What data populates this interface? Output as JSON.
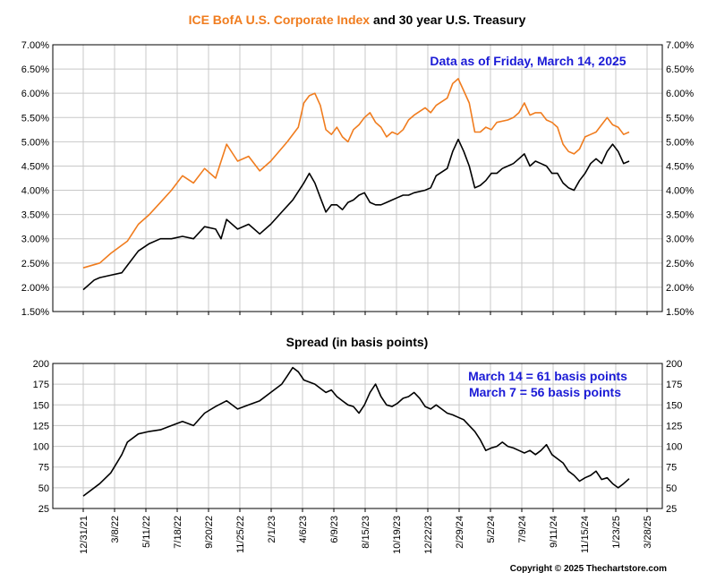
{
  "chart_data": {
    "type": "line",
    "x_axis": {
      "tick_labels": [
        "12/31/21",
        "3/8/22",
        "5/11/22",
        "7/18/22",
        "9/20/22",
        "11/25/22",
        "2/1/23",
        "4/6/23",
        "6/9/23",
        "8/15/23",
        "10/19/23",
        "12/22/23",
        "2/29/24",
        "5/2/24",
        "7/9/24",
        "9/11/24",
        "11/15/24",
        "1/23/25",
        "3/28/25"
      ]
    },
    "top_panel": {
      "title_part1": "ICE BofA U.S. Corporate Index",
      "title_part2": " and 30 year U.S. Treasury",
      "annotation": "Data as of Friday, March 14, 2025",
      "y_ticks": [
        "7.00%",
        "6.50%",
        "6.00%",
        "5.50%",
        "5.00%",
        "4.50%",
        "4.00%",
        "3.50%",
        "3.00%",
        "2.50%",
        "2.00%",
        "1.50%"
      ],
      "ylim": [
        1.5,
        7.0
      ],
      "series": [
        {
          "color": "#f07c1e",
          "points": [
            [
              0,
              2.4
            ],
            [
              3,
              2.5
            ],
            [
              5,
              2.7
            ],
            [
              8,
              2.95
            ],
            [
              10,
              3.3
            ],
            [
              12,
              3.5
            ],
            [
              14,
              3.75
            ],
            [
              16,
              4.0
            ],
            [
              18,
              4.3
            ],
            [
              20,
              4.15
            ],
            [
              22,
              4.45
            ],
            [
              24,
              4.25
            ],
            [
              26,
              4.95
            ],
            [
              28,
              4.6
            ],
            [
              30,
              4.7
            ],
            [
              32,
              4.4
            ],
            [
              34,
              4.6
            ],
            [
              37,
              5.0
            ],
            [
              39,
              5.3
            ],
            [
              40,
              5.8
            ],
            [
              41,
              5.95
            ],
            [
              42,
              6.0
            ],
            [
              43,
              5.75
            ],
            [
              44,
              5.25
            ],
            [
              45,
              5.15
            ],
            [
              46,
              5.3
            ],
            [
              47,
              5.1
            ],
            [
              48,
              5.0
            ],
            [
              49,
              5.25
            ],
            [
              50,
              5.35
            ],
            [
              51,
              5.5
            ],
            [
              52,
              5.6
            ],
            [
              53,
              5.4
            ],
            [
              54,
              5.3
            ],
            [
              55,
              5.1
            ],
            [
              56,
              5.2
            ],
            [
              57,
              5.15
            ],
            [
              58,
              5.25
            ],
            [
              59,
              5.45
            ],
            [
              60,
              5.55
            ],
            [
              62,
              5.7
            ],
            [
              63,
              5.6
            ],
            [
              64,
              5.75
            ],
            [
              66,
              5.9
            ],
            [
              67,
              6.2
            ],
            [
              68,
              6.3
            ],
            [
              69,
              6.05
            ],
            [
              70,
              5.8
            ],
            [
              71,
              5.2
            ],
            [
              72,
              5.2
            ],
            [
              73,
              5.3
            ],
            [
              74,
              5.25
            ],
            [
              75,
              5.4
            ],
            [
              77,
              5.45
            ],
            [
              78,
              5.5
            ],
            [
              79,
              5.6
            ],
            [
              80,
              5.8
            ],
            [
              81,
              5.55
            ],
            [
              82,
              5.6
            ],
            [
              83,
              5.6
            ],
            [
              84,
              5.45
            ],
            [
              85,
              5.4
            ],
            [
              86,
              5.3
            ],
            [
              87,
              4.95
            ],
            [
              88,
              4.8
            ],
            [
              89,
              4.75
            ],
            [
              90,
              4.85
            ],
            [
              91,
              5.1
            ],
            [
              92,
              5.15
            ],
            [
              93,
              5.2
            ],
            [
              94,
              5.35
            ],
            [
              95,
              5.5
            ],
            [
              96,
              5.35
            ],
            [
              97,
              5.3
            ],
            [
              98,
              5.15
            ],
            [
              99,
              5.2
            ]
          ]
        },
        {
          "color": "#000000",
          "points": [
            [
              0,
              1.95
            ],
            [
              2,
              2.15
            ],
            [
              3,
              2.2
            ],
            [
              5,
              2.25
            ],
            [
              7,
              2.3
            ],
            [
              8,
              2.45
            ],
            [
              10,
              2.75
            ],
            [
              12,
              2.9
            ],
            [
              14,
              3.0
            ],
            [
              16,
              3.0
            ],
            [
              18,
              3.05
            ],
            [
              20,
              3.0
            ],
            [
              22,
              3.25
            ],
            [
              24,
              3.2
            ],
            [
              25,
              3.0
            ],
            [
              26,
              3.4
            ],
            [
              28,
              3.2
            ],
            [
              30,
              3.3
            ],
            [
              32,
              3.1
            ],
            [
              34,
              3.3
            ],
            [
              36,
              3.55
            ],
            [
              38,
              3.8
            ],
            [
              40,
              4.15
            ],
            [
              41,
              4.35
            ],
            [
              42,
              4.15
            ],
            [
              43,
              3.85
            ],
            [
              44,
              3.55
            ],
            [
              45,
              3.7
            ],
            [
              46,
              3.7
            ],
            [
              47,
              3.6
            ],
            [
              48,
              3.75
            ],
            [
              49,
              3.8
            ],
            [
              50,
              3.9
            ],
            [
              51,
              3.95
            ],
            [
              52,
              3.75
            ],
            [
              53,
              3.7
            ],
            [
              54,
              3.7
            ],
            [
              55,
              3.75
            ],
            [
              56,
              3.8
            ],
            [
              57,
              3.85
            ],
            [
              58,
              3.9
            ],
            [
              59,
              3.9
            ],
            [
              60,
              3.95
            ],
            [
              62,
              4.0
            ],
            [
              63,
              4.05
            ],
            [
              64,
              4.3
            ],
            [
              66,
              4.45
            ],
            [
              67,
              4.8
            ],
            [
              68,
              5.05
            ],
            [
              69,
              4.8
            ],
            [
              70,
              4.5
            ],
            [
              71,
              4.05
            ],
            [
              72,
              4.1
            ],
            [
              73,
              4.2
            ],
            [
              74,
              4.35
            ],
            [
              75,
              4.35
            ],
            [
              76,
              4.45
            ],
            [
              77,
              4.5
            ],
            [
              78,
              4.55
            ],
            [
              79,
              4.65
            ],
            [
              80,
              4.75
            ],
            [
              81,
              4.5
            ],
            [
              82,
              4.6
            ],
            [
              83,
              4.55
            ],
            [
              84,
              4.5
            ],
            [
              85,
              4.35
            ],
            [
              86,
              4.35
            ],
            [
              87,
              4.15
            ],
            [
              88,
              4.05
            ],
            [
              89,
              4.0
            ],
            [
              90,
              4.2
            ],
            [
              91,
              4.35
            ],
            [
              92,
              4.55
            ],
            [
              93,
              4.65
            ],
            [
              94,
              4.55
            ],
            [
              95,
              4.8
            ],
            [
              96,
              4.95
            ],
            [
              97,
              4.8
            ],
            [
              98,
              4.55
            ],
            [
              99,
              4.6
            ]
          ]
        }
      ]
    },
    "bottom_panel": {
      "title": "Spread (in basis points)",
      "annotation_1": "March 14 = 61 basis points",
      "annotation_2": "March 7 = 56 basis points",
      "y_ticks": [
        "200",
        "175",
        "150",
        "125",
        "100",
        "75",
        "50",
        "25"
      ],
      "ylim": [
        25,
        200
      ],
      "series": [
        {
          "color": "#000000",
          "points": [
            [
              0,
              40
            ],
            [
              3,
              55
            ],
            [
              5,
              68
            ],
            [
              7,
              90
            ],
            [
              8,
              105
            ],
            [
              10,
              115
            ],
            [
              12,
              118
            ],
            [
              14,
              120
            ],
            [
              16,
              125
            ],
            [
              18,
              130
            ],
            [
              20,
              125
            ],
            [
              22,
              140
            ],
            [
              24,
              148
            ],
            [
              26,
              155
            ],
            [
              28,
              145
            ],
            [
              30,
              150
            ],
            [
              32,
              155
            ],
            [
              34,
              165
            ],
            [
              36,
              175
            ],
            [
              37,
              185
            ],
            [
              38,
              195
            ],
            [
              39,
              190
            ],
            [
              40,
              180
            ],
            [
              42,
              175
            ],
            [
              43,
              170
            ],
            [
              44,
              165
            ],
            [
              45,
              168
            ],
            [
              46,
              160
            ],
            [
              47,
              155
            ],
            [
              48,
              150
            ],
            [
              49,
              148
            ],
            [
              50,
              140
            ],
            [
              51,
              150
            ],
            [
              52,
              165
            ],
            [
              53,
              175
            ],
            [
              54,
              160
            ],
            [
              55,
              150
            ],
            [
              56,
              148
            ],
            [
              57,
              152
            ],
            [
              58,
              158
            ],
            [
              59,
              160
            ],
            [
              60,
              165
            ],
            [
              61,
              158
            ],
            [
              62,
              148
            ],
            [
              63,
              145
            ],
            [
              64,
              150
            ],
            [
              65,
              145
            ],
            [
              66,
              140
            ],
            [
              67,
              138
            ],
            [
              68,
              135
            ],
            [
              69,
              132
            ],
            [
              70,
              125
            ],
            [
              71,
              118
            ],
            [
              72,
              108
            ],
            [
              73,
              95
            ],
            [
              74,
              98
            ],
            [
              75,
              100
            ],
            [
              76,
              105
            ],
            [
              77,
              100
            ],
            [
              78,
              98
            ],
            [
              79,
              95
            ],
            [
              80,
              92
            ],
            [
              81,
              95
            ],
            [
              82,
              90
            ],
            [
              83,
              95
            ],
            [
              84,
              102
            ],
            [
              85,
              90
            ],
            [
              86,
              85
            ],
            [
              87,
              80
            ],
            [
              88,
              70
            ],
            [
              89,
              65
            ],
            [
              90,
              58
            ],
            [
              91,
              62
            ],
            [
              92,
              65
            ],
            [
              93,
              70
            ],
            [
              94,
              60
            ],
            [
              95,
              62
            ],
            [
              96,
              55
            ],
            [
              97,
              50
            ],
            [
              98,
              55
            ],
            [
              99,
              61
            ]
          ]
        }
      ]
    },
    "copyright": "Copyright © 2025 Thechartstore.com"
  }
}
